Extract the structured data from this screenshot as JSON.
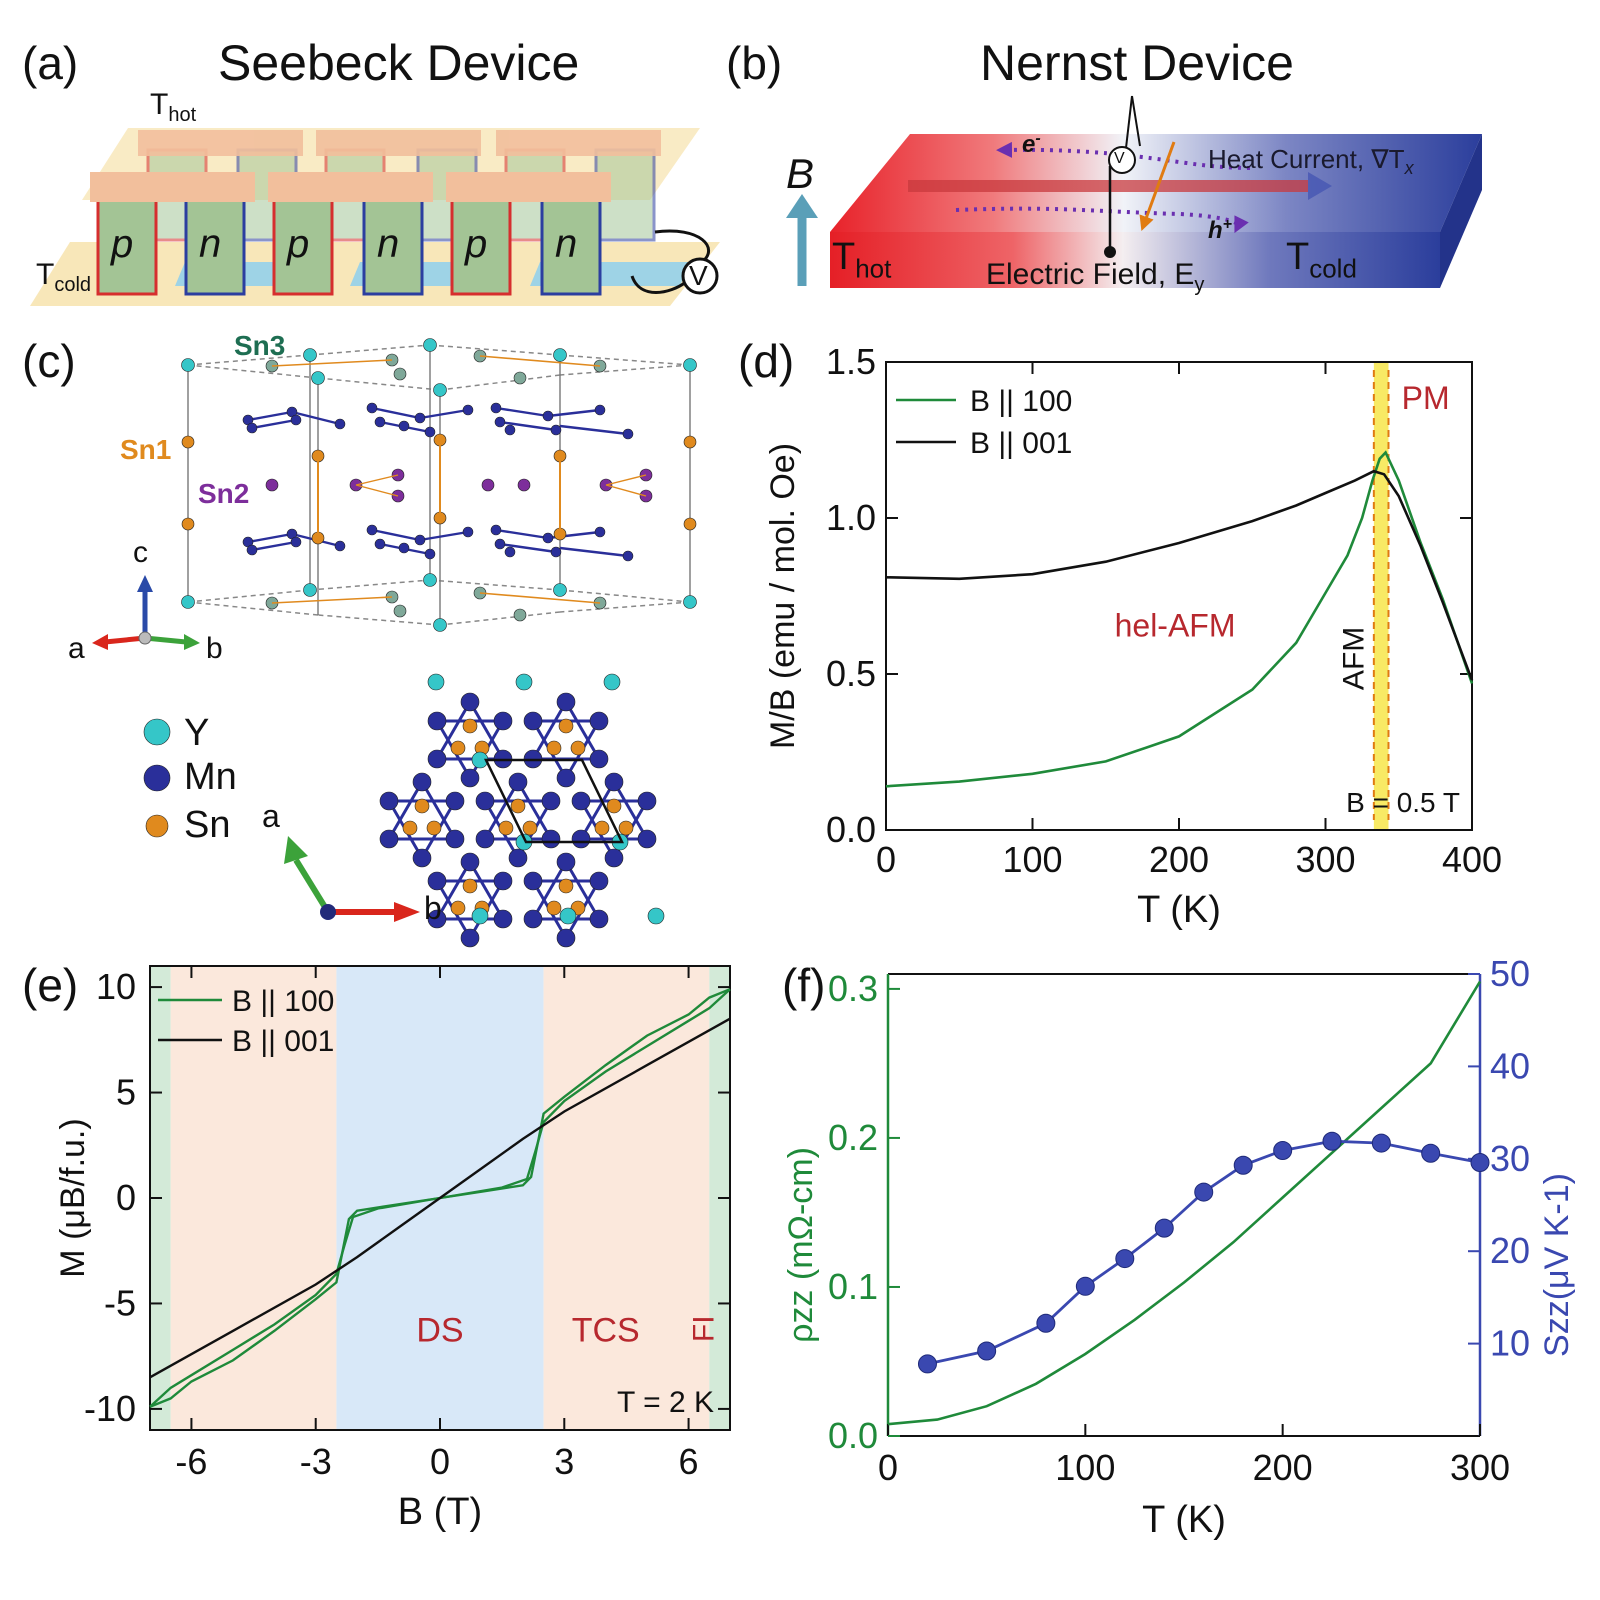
{
  "panel_a": {
    "label": "(a)",
    "title": "Seebeck Device",
    "t_hot": "T",
    "t_hot_sub": "hot",
    "t_cold": "T",
    "t_cold_sub": "cold",
    "legs": [
      "p",
      "n",
      "p",
      "n",
      "p",
      "n"
    ],
    "voltmeter": "V"
  },
  "panel_b": {
    "label": "(b)",
    "title": "Nernst Device",
    "b_label": "B",
    "t_hot": "T",
    "t_hot_sub": "hot",
    "t_cold": "T",
    "t_cold_sub": "cold",
    "electron": "e",
    "electron_sup": "-",
    "hole": "h",
    "hole_sup": "+",
    "heat_current": "Heat Current, ∇T",
    "heat_current_sub": "x",
    "electric_field": "Electric Field, E",
    "electric_field_sub": "y",
    "voltmeter": "V",
    "colors": {
      "hot": "#e8222a",
      "cold": "#2b3e9c",
      "arrow": "#6a2fb0",
      "field": "#e07b12"
    }
  },
  "panel_c": {
    "label": "(c)",
    "site_labels": {
      "sn3": "Sn3",
      "sn1": "Sn1",
      "sn2": "Sn2"
    },
    "axes_3d": {
      "c": "c",
      "a": "a",
      "b": "b"
    },
    "legend": [
      {
        "name": "Y",
        "color": "#35c6c8"
      },
      {
        "name": "Mn",
        "color": "#2a2f9a"
      },
      {
        "name": "Sn",
        "color": "#e08a1e"
      }
    ],
    "axes_2d": {
      "a": "a",
      "b": "b"
    },
    "colors": {
      "sn1": "#e08a1e",
      "sn2": "#7d2e9b",
      "sn3": "#1e6e52",
      "arrow_a": "#d9261c",
      "arrow_b": "#3ca23a",
      "arrow_c": "#2a4aa8"
    }
  },
  "chart_data": [
    {
      "id": "d",
      "label": "(d)",
      "type": "line",
      "xlabel": "T (K)",
      "ylabel": "M/B (emu / mol. Oe)",
      "xlim": [
        0,
        400
      ],
      "ylim": [
        0,
        1.5
      ],
      "xticks": [
        "0",
        "100",
        "200",
        "300",
        "400"
      ],
      "yticks": [
        "0.0",
        "0.5",
        "1.0",
        "1.5"
      ],
      "legend": [
        "B || 100",
        "B || 001"
      ],
      "annotations": {
        "phase_low": "hel-AFM",
        "afm": "AFM",
        "pm": "PM",
        "field": "B = 0.5 T"
      },
      "band_range": [
        333,
        343
      ],
      "dashed_lines": [
        333,
        343
      ],
      "series": [
        {
          "name": "B || 100",
          "color": "#1f8a3a",
          "x": [
            0,
            50,
            100,
            150,
            200,
            250,
            280,
            300,
            315,
            325,
            332,
            337,
            341,
            350,
            365,
            380,
            400
          ],
          "y": [
            0.14,
            0.155,
            0.18,
            0.22,
            0.3,
            0.45,
            0.6,
            0.76,
            0.88,
            1.0,
            1.12,
            1.19,
            1.21,
            1.12,
            0.92,
            0.74,
            0.47
          ]
        },
        {
          "name": "B || 001",
          "color": "#111111",
          "x": [
            0,
            50,
            100,
            150,
            200,
            250,
            280,
            300,
            320,
            333,
            340,
            350,
            365,
            380,
            400
          ],
          "y": [
            0.81,
            0.805,
            0.82,
            0.86,
            0.92,
            0.99,
            1.04,
            1.08,
            1.12,
            1.15,
            1.14,
            1.07,
            0.91,
            0.73,
            0.48
          ]
        }
      ]
    },
    {
      "id": "e",
      "label": "(e)",
      "type": "line",
      "xlabel": "B (T)",
      "ylabel": "M (μB/f.u.)",
      "xlim": [
        -7,
        7
      ],
      "ylim": [
        -11,
        11
      ],
      "xticks": [
        "-6",
        "-3",
        "0",
        "3",
        "6"
      ],
      "yticks": [
        "-10",
        "-5",
        "0",
        "5",
        "10"
      ],
      "legend": [
        "B || 100",
        "B || 001"
      ],
      "annotations": {
        "ds": "DS",
        "tcs": "TCS",
        "fi": "FI",
        "temp": "T = 2 K"
      },
      "regions": [
        {
          "name": "FI",
          "from": -7,
          "to": -6.5,
          "color": "#d3ead8"
        },
        {
          "name": "TCS",
          "from": -6.5,
          "to": -2.5,
          "color": "#fbe8dc"
        },
        {
          "name": "DS",
          "from": -2.5,
          "to": 2.5,
          "color": "#d8e8f8"
        },
        {
          "name": "TCS",
          "from": 2.5,
          "to": 6.5,
          "color": "#fbe8dc"
        },
        {
          "name": "FI",
          "from": 6.5,
          "to": 7,
          "color": "#d3ead8"
        }
      ],
      "series": [
        {
          "name": "B || 100 up",
          "color": "#1f8a3a",
          "x": [
            -7,
            -6.5,
            -6,
            -5,
            -4,
            -3,
            -2.5,
            -2.2,
            -2,
            -1,
            0,
            1,
            2,
            2.2,
            2.5,
            3,
            4,
            5,
            6,
            6.5,
            7
          ],
          "y": [
            -9.9,
            -9.5,
            -8.7,
            -7.7,
            -6.3,
            -4.8,
            -4.0,
            -1.0,
            -0.6,
            -0.3,
            0,
            0.3,
            0.6,
            1.0,
            4.0,
            4.8,
            6.3,
            7.7,
            8.7,
            9.5,
            9.9
          ]
        },
        {
          "name": "B || 100 down",
          "color": "#1f8a3a",
          "x": [
            -7,
            -6.5,
            -6,
            -5,
            -4,
            -3,
            -2.5,
            -2.3,
            -2.1,
            -1.5,
            0,
            1.5,
            2.1,
            2.3,
            2.5,
            3,
            4,
            5,
            6,
            6.5,
            7
          ],
          "y": [
            -9.9,
            -9.0,
            -8.4,
            -7.2,
            -6.0,
            -4.6,
            -3.6,
            -2.2,
            -0.9,
            -0.5,
            0,
            0.5,
            0.9,
            2.2,
            3.6,
            4.6,
            6.0,
            7.2,
            8.4,
            9.0,
            9.9
          ]
        },
        {
          "name": "B || 001",
          "color": "#111111",
          "x": [
            -7,
            -5,
            -3,
            -2,
            -1,
            0,
            1,
            2,
            3,
            5,
            7
          ],
          "y": [
            -8.5,
            -6.3,
            -4.1,
            -2.8,
            -1.4,
            0,
            1.4,
            2.8,
            4.1,
            6.3,
            8.5
          ]
        }
      ]
    },
    {
      "id": "f",
      "label": "(f)",
      "type": "line",
      "xlabel": "T (K)",
      "ylabel_left": "ρzz (mΩ-cm)",
      "ylabel_right": "Szz(μV K-1)",
      "xlim": [
        0,
        300
      ],
      "ylim_left": [
        0,
        0.31
      ],
      "ylim_right": [
        0,
        50
      ],
      "xticks": [
        "0",
        "100",
        "200",
        "300"
      ],
      "yticks_left": [
        "0.0",
        "0.1",
        "0.2",
        "0.3"
      ],
      "yticks_right": [
        "10",
        "20",
        "30",
        "40",
        "50"
      ],
      "series": [
        {
          "name": "ρzz",
          "axis": "left",
          "color": "#1f8a3a",
          "x": [
            0,
            25,
            50,
            75,
            100,
            125,
            150,
            175,
            200,
            225,
            250,
            275,
            300
          ],
          "y": [
            0.008,
            0.011,
            0.02,
            0.035,
            0.055,
            0.078,
            0.103,
            0.13,
            0.16,
            0.19,
            0.22,
            0.25,
            0.305
          ]
        },
        {
          "name": "Szz",
          "axis": "right",
          "color": "#3a48b0",
          "markers": true,
          "x": [
            20,
            50,
            80,
            100,
            120,
            140,
            160,
            180,
            200,
            225,
            250,
            275,
            300
          ],
          "y": [
            7.8,
            9.2,
            12.2,
            16.2,
            19.2,
            22.5,
            26.4,
            29.3,
            30.9,
            31.9,
            31.7,
            30.6,
            29.6
          ]
        }
      ]
    }
  ]
}
